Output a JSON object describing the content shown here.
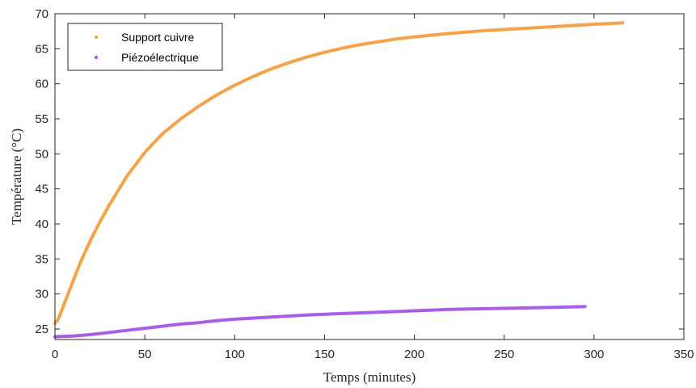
{
  "chart_data": {
    "type": "line",
    "xlabel": "Temps (minutes)",
    "ylabel": "Température (°C)",
    "xlim": [
      0,
      350
    ],
    "ylim": [
      23.5,
      70
    ],
    "xticks": [
      0,
      50,
      100,
      150,
      200,
      250,
      300,
      350
    ],
    "yticks": [
      25,
      30,
      35,
      40,
      45,
      50,
      55,
      60,
      65,
      70
    ],
    "grid": false,
    "legend_position": "top-left",
    "series": [
      {
        "name": "Support cuivre",
        "color": "#F5A348",
        "x": [
          0,
          2,
          5,
          10,
          15,
          20,
          25,
          30,
          40,
          50,
          55,
          60,
          70,
          80,
          90,
          100,
          110,
          120,
          130,
          140,
          150,
          160,
          170,
          180,
          190,
          200,
          220,
          240,
          260,
          280,
          300,
          316
        ],
        "y": [
          25.8,
          26.5,
          28.5,
          31.8,
          35.0,
          37.8,
          40.3,
          42.6,
          46.8,
          50.2,
          51.6,
          52.9,
          55.0,
          56.8,
          58.4,
          59.8,
          61.0,
          62.1,
          63.0,
          63.8,
          64.5,
          65.1,
          65.6,
          66.0,
          66.4,
          66.7,
          67.2,
          67.6,
          67.9,
          68.2,
          68.5,
          68.7
        ]
      },
      {
        "name": "Piézoélectrique",
        "color": "#A95EEA",
        "x": [
          0,
          10,
          20,
          30,
          40,
          50,
          60,
          70,
          80,
          90,
          100,
          120,
          140,
          160,
          180,
          200,
          220,
          240,
          260,
          280,
          295
        ],
        "y": [
          23.9,
          24.0,
          24.2,
          24.5,
          24.8,
          25.1,
          25.4,
          25.7,
          25.9,
          26.2,
          26.4,
          26.7,
          27.0,
          27.2,
          27.4,
          27.6,
          27.8,
          27.9,
          28.0,
          28.1,
          28.2
        ]
      }
    ]
  }
}
